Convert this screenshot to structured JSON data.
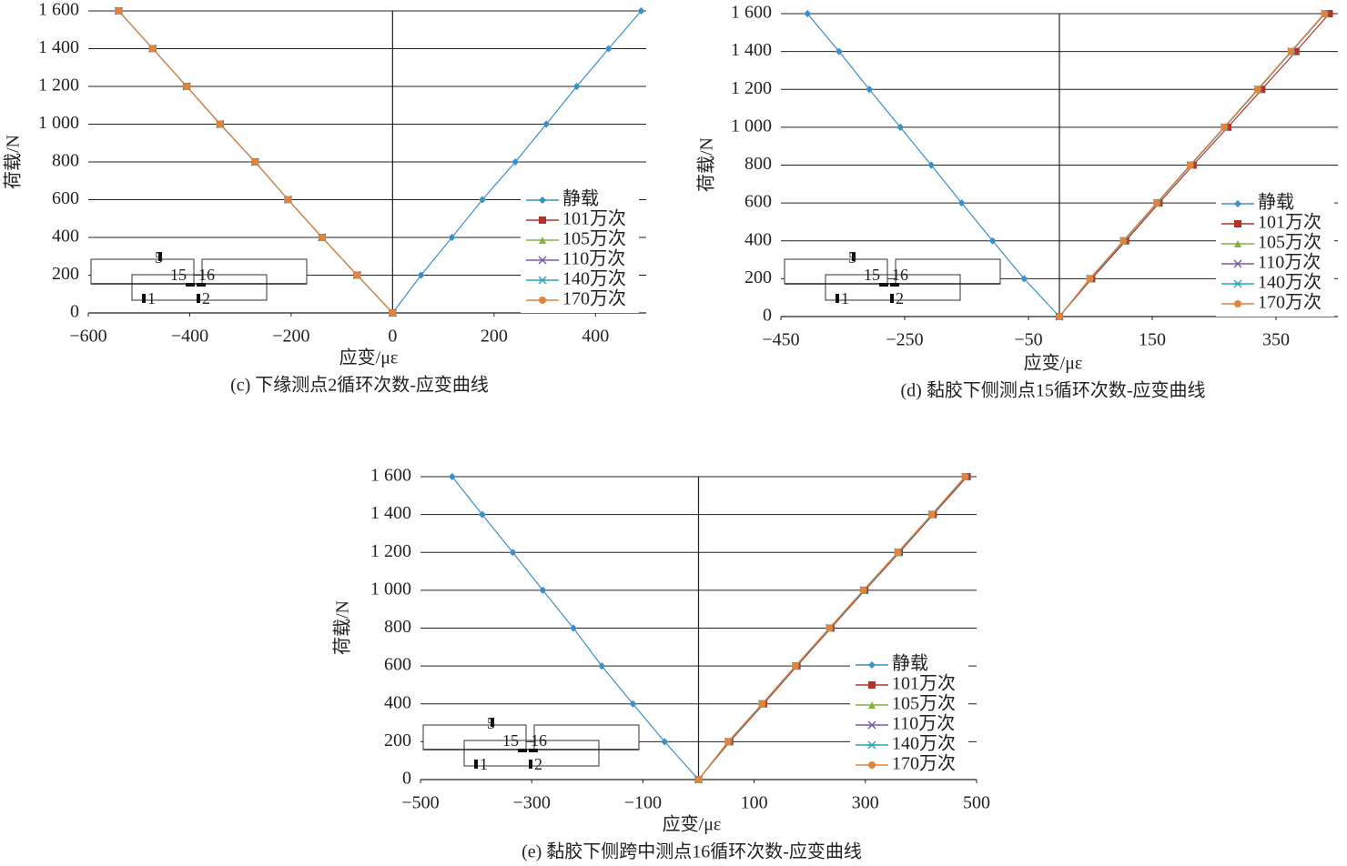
{
  "chart_data": [
    {
      "type": "line",
      "title": "(c) 下缘测点2循环次数-应变曲线",
      "x_label": "应变/με",
      "y_label": "荷载/N",
      "xlim": [
        -600,
        500
      ],
      "ylim": [
        0,
        1600
      ],
      "xticks": [
        {
          "value": -600,
          "label": "−600"
        },
        {
          "value": -400,
          "label": "−400"
        },
        {
          "value": -200,
          "label": "−200"
        },
        0,
        200,
        400
      ],
      "yticks": [
        0,
        200,
        400,
        600,
        800,
        {
          "value": 1000,
          "label": "1 000"
        },
        {
          "value": 1200,
          "label": "1 200"
        },
        {
          "value": 1400,
          "label": "1 400"
        },
        {
          "value": 1600,
          "label": "1 600"
        }
      ],
      "grid": true,
      "inset_labels": [
        "5",
        "15",
        "16",
        "1",
        "2"
      ],
      "series": [
        {
          "name": "静载",
          "color": "#3a8fc8",
          "marker": "diamond",
          "x": [
            0,
            56,
            117,
            177,
            242,
            303,
            363,
            426,
            490
          ],
          "values": [
            0,
            200,
            400,
            600,
            800,
            1000,
            1200,
            1400,
            1600
          ]
        },
        {
          "name": "101万次",
          "color": "#b5322a",
          "marker": "square",
          "x": [
            0,
            -70,
            -139,
            -206,
            -271,
            -340,
            -406,
            -473,
            -540
          ],
          "values": [
            0,
            200,
            400,
            600,
            800,
            1000,
            1200,
            1400,
            1600
          ]
        },
        {
          "name": "105万次",
          "color": "#7fb33d",
          "marker": "triangle",
          "x": [
            0,
            -70,
            -139,
            -206,
            -271,
            -340,
            -406,
            -473,
            -540
          ],
          "values": [
            0,
            200,
            400,
            600,
            800,
            1000,
            1200,
            1400,
            1600
          ]
        },
        {
          "name": "110万次",
          "color": "#7a5aa8",
          "marker": "cross",
          "x": [
            0,
            -70,
            -139,
            -206,
            -271,
            -340,
            -406,
            -473,
            -540
          ],
          "values": [
            0,
            200,
            400,
            600,
            800,
            1000,
            1200,
            1400,
            1600
          ]
        },
        {
          "name": "140万次",
          "color": "#2aa7b8",
          "marker": "star",
          "x": [
            0,
            -70,
            -139,
            -206,
            -271,
            -340,
            -406,
            -473,
            -540
          ],
          "values": [
            0,
            200,
            400,
            600,
            800,
            1000,
            1200,
            1400,
            1600
          ]
        },
        {
          "name": "170万次",
          "color": "#e2843a",
          "marker": "circle",
          "x": [
            0,
            -70,
            -139,
            -206,
            -271,
            -340,
            -406,
            -473,
            -540
          ],
          "values": [
            0,
            200,
            400,
            600,
            800,
            1000,
            1200,
            1400,
            1600
          ]
        }
      ]
    },
    {
      "type": "line",
      "title": "(d) 黏胶下侧测点15循环次数-应变曲线",
      "x_label": "应变/με",
      "y_label": "荷载/N",
      "xlim": [
        -450,
        450
      ],
      "ylim": [
        0,
        1600
      ],
      "xticks": [
        {
          "value": -450,
          "label": "−450"
        },
        {
          "value": -250,
          "label": "−250"
        },
        {
          "value": -50,
          "label": "−50"
        },
        150,
        350
      ],
      "yticks": [
        0,
        200,
        400,
        600,
        800,
        {
          "value": 1000,
          "label": "1 000"
        },
        {
          "value": 1200,
          "label": "1 200"
        },
        {
          "value": 1400,
          "label": "1 400"
        },
        {
          "value": 1600,
          "label": "1 600"
        }
      ],
      "grid": true,
      "inset_labels": [
        "5",
        "15",
        "16",
        "1",
        "2"
      ],
      "series": [
        {
          "name": "静载",
          "color": "#3a8fc8",
          "marker": "diamond",
          "x": [
            0,
            -57,
            -108,
            -158,
            -207,
            -257,
            -307,
            -356,
            -407
          ],
          "values": [
            0,
            200,
            400,
            600,
            800,
            1000,
            1200,
            1400,
            1600
          ]
        },
        {
          "name": "101万次",
          "color": "#b5322a",
          "marker": "square",
          "x": [
            0,
            52,
            107,
            161,
            216,
            272,
            327,
            382,
            436
          ],
          "values": [
            0,
            200,
            400,
            600,
            800,
            1000,
            1200,
            1400,
            1600
          ]
        },
        {
          "name": "105万次",
          "color": "#7fb33d",
          "marker": "triangle",
          "x": [
            0,
            50,
            104,
            158,
            212,
            267,
            321,
            375,
            429
          ],
          "values": [
            0,
            200,
            400,
            600,
            800,
            1000,
            1200,
            1400,
            1600
          ]
        },
        {
          "name": "110万次",
          "color": "#7a5aa8",
          "marker": "cross",
          "x": [
            0,
            50,
            104,
            158,
            212,
            267,
            321,
            375,
            429
          ],
          "values": [
            0,
            200,
            400,
            600,
            800,
            1000,
            1200,
            1400,
            1600
          ]
        },
        {
          "name": "140万次",
          "color": "#2aa7b8",
          "marker": "star",
          "x": [
            0,
            50,
            104,
            158,
            212,
            267,
            321,
            375,
            429
          ],
          "values": [
            0,
            200,
            400,
            600,
            800,
            1000,
            1200,
            1400,
            1600
          ]
        },
        {
          "name": "170万次",
          "color": "#e2843a",
          "marker": "circle",
          "x": [
            0,
            49,
            103,
            157,
            211,
            266,
            320,
            374,
            428
          ],
          "values": [
            0,
            200,
            400,
            600,
            800,
            1000,
            1200,
            1400,
            1600
          ]
        }
      ]
    },
    {
      "type": "line",
      "title": "(e) 黏胶下侧跨中测点16循环次数-应变曲线",
      "x_label": "应变/με",
      "y_label": "荷载/N",
      "xlim": [
        -500,
        500
      ],
      "ylim": [
        0,
        1600
      ],
      "xticks": [
        {
          "value": -500,
          "label": "−500"
        },
        {
          "value": -300,
          "label": "−300"
        },
        {
          "value": -100,
          "label": "−100"
        },
        100,
        300,
        500
      ],
      "yticks": [
        0,
        200,
        400,
        600,
        800,
        {
          "value": 1000,
          "label": "1 000"
        },
        {
          "value": 1200,
          "label": "1 200"
        },
        {
          "value": 1400,
          "label": "1 400"
        },
        {
          "value": 1600,
          "label": "1 600"
        }
      ],
      "grid": true,
      "inset_labels": [
        "5",
        "15",
        "16",
        "1",
        "2"
      ],
      "series": [
        {
          "name": "静载",
          "color": "#3a8fc8",
          "marker": "diamond",
          "x": [
            0,
            -61,
            -118,
            -174,
            -225,
            -280,
            -334,
            -389,
            -443
          ],
          "values": [
            0,
            200,
            400,
            600,
            800,
            1000,
            1200,
            1400,
            1600
          ]
        },
        {
          "name": "101万次",
          "color": "#b5322a",
          "marker": "square",
          "x": [
            0,
            56,
            117,
            177,
            238,
            299,
            361,
            422,
            483
          ],
          "values": [
            0,
            200,
            400,
            600,
            800,
            1000,
            1200,
            1400,
            1600
          ]
        },
        {
          "name": "105万次",
          "color": "#7fb33d",
          "marker": "triangle",
          "x": [
            0,
            54,
            115,
            175,
            236,
            297,
            359,
            420,
            480
          ],
          "values": [
            0,
            200,
            400,
            600,
            800,
            1000,
            1200,
            1400,
            1600
          ]
        },
        {
          "name": "110万次",
          "color": "#7a5aa8",
          "marker": "cross",
          "x": [
            0,
            54,
            115,
            175,
            236,
            297,
            359,
            420,
            480
          ],
          "values": [
            0,
            200,
            400,
            600,
            800,
            1000,
            1200,
            1400,
            1600
          ]
        },
        {
          "name": "140万次",
          "color": "#2aa7b8",
          "marker": "star",
          "x": [
            0,
            54,
            115,
            175,
            236,
            297,
            359,
            420,
            480
          ],
          "values": [
            0,
            200,
            400,
            600,
            800,
            1000,
            1200,
            1400,
            1600
          ]
        },
        {
          "name": "170万次",
          "color": "#e2843a",
          "marker": "circle",
          "x": [
            0,
            53,
            114,
            174,
            235,
            296,
            358,
            419,
            479
          ],
          "values": [
            0,
            200,
            400,
            600,
            800,
            1000,
            1200,
            1400,
            1600
          ]
        }
      ]
    }
  ]
}
